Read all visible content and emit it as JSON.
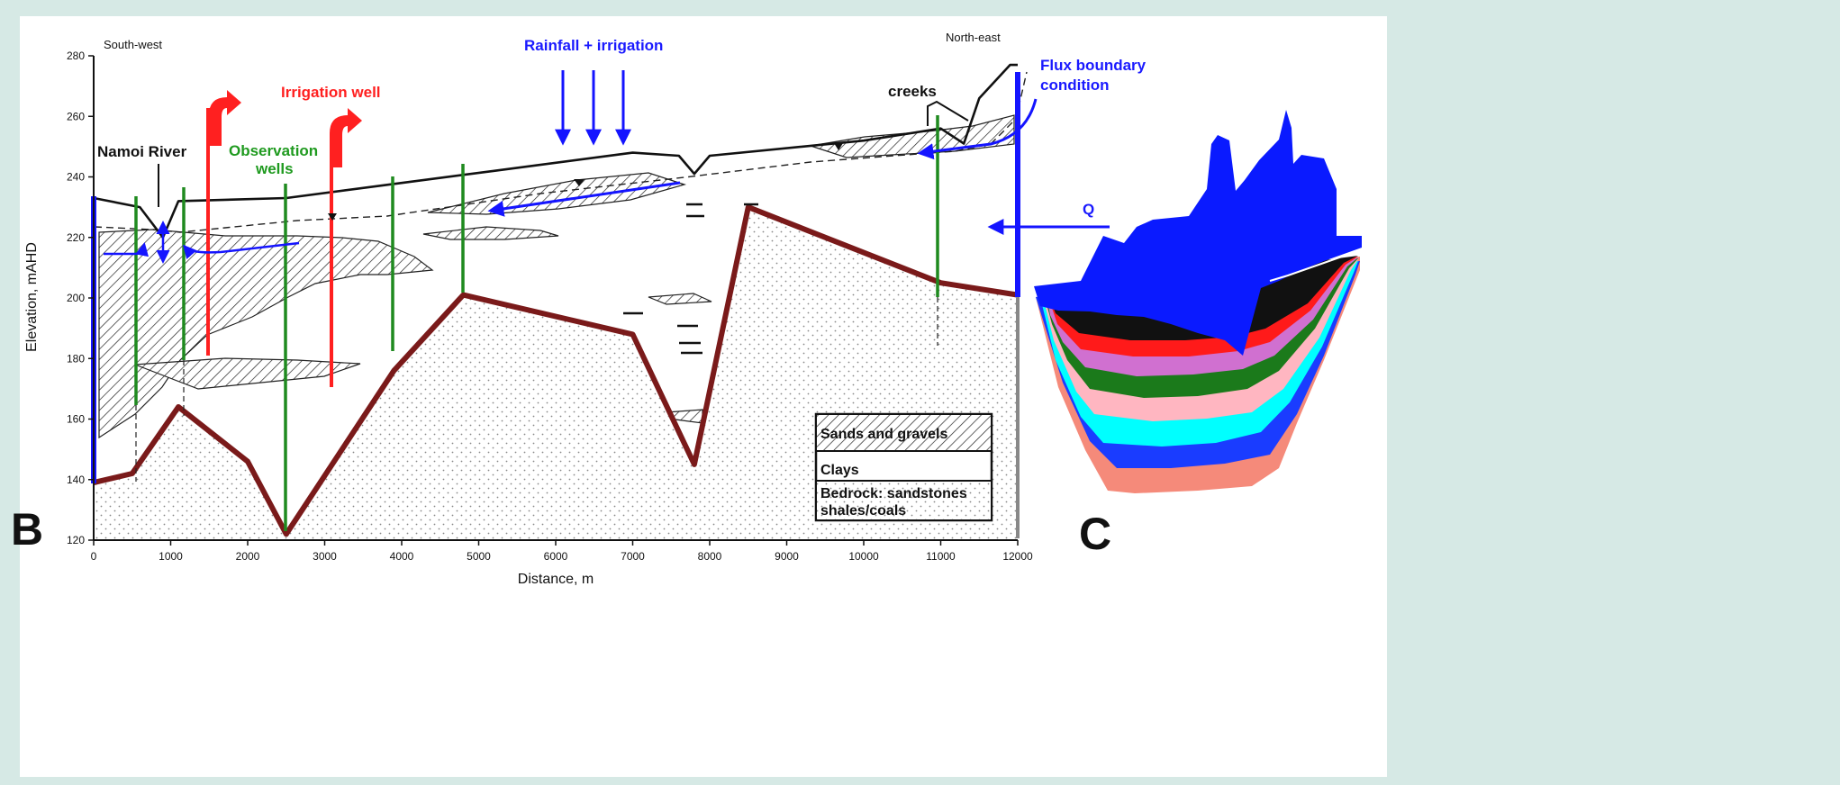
{
  "panel_b_letter": "B",
  "panel_c_letter": "C",
  "orientation": {
    "left": "South-west",
    "right": "North-east"
  },
  "y_axis": {
    "label": "Elevation, mAHD",
    "ticks": [
      280,
      260,
      240,
      220,
      200,
      180,
      160,
      140,
      120
    ],
    "min": 120,
    "max": 280
  },
  "x_axis": {
    "label": "Distance, m",
    "ticks": [
      0,
      1000,
      2000,
      3000,
      4000,
      5000,
      6000,
      7000,
      8000,
      9000,
      10000,
      11000,
      12000
    ],
    "min": 0,
    "max": 12000
  },
  "annotations": {
    "rainfall": "Rainfall + irrigation",
    "irrigation_well": "Irrigation well",
    "namoi_river": "Namoi River",
    "observation_wells_1": "Observation",
    "observation_wells_2": "wells",
    "creeks": "creeks",
    "flux_1": "Flux boundary",
    "flux_2": "condition",
    "q": "Q"
  },
  "legend": {
    "sands": "Sands and gravels",
    "clays": "Clays",
    "bedrock_1": "Bedrock: sandstones",
    "bedrock_2": "shales/coals"
  },
  "colors": {
    "background": "#d6e9e5",
    "plot_bg": "#ffffff",
    "bedrock_line": "#7a1a1a",
    "observation_well": "#1f8a1f",
    "irrigation_well": "#ff2020",
    "flow_arrow": "#1414ff",
    "text_blue": "#1a1aff",
    "text_red": "#ff2020",
    "text_green": "#1f9a1f"
  },
  "chart_data": {
    "type": "line",
    "title": "",
    "xlabel": "Distance, m",
    "ylabel": "Elevation, mAHD",
    "xlim": [
      0,
      12000
    ],
    "ylim": [
      120,
      280
    ],
    "series": [
      {
        "name": "Bedrock",
        "x": [
          0,
          500,
          1100,
          2000,
          2500,
          3900,
          4800,
          7000,
          7800,
          8500,
          11000,
          12000
        ],
        "y": [
          139,
          142,
          164,
          146,
          122,
          176,
          201,
          188,
          145,
          230,
          205,
          201
        ]
      },
      {
        "name": "Ground surface",
        "x": [
          0,
          600,
          900,
          1100,
          2500,
          4000,
          5200,
          7000,
          7600,
          7800,
          8000,
          10000,
          11000,
          11300,
          11500,
          11900,
          12000
        ],
        "y": [
          233,
          230,
          220,
          232,
          233,
          238,
          242,
          248,
          247,
          241,
          247,
          252,
          256,
          251,
          266,
          277,
          277
        ]
      }
    ],
    "observation_wells_x": [
      500,
      1150,
      2550,
      3900,
      4900,
      11000
    ],
    "irrigation_wells_x": [
      1500,
      3100
    ]
  }
}
